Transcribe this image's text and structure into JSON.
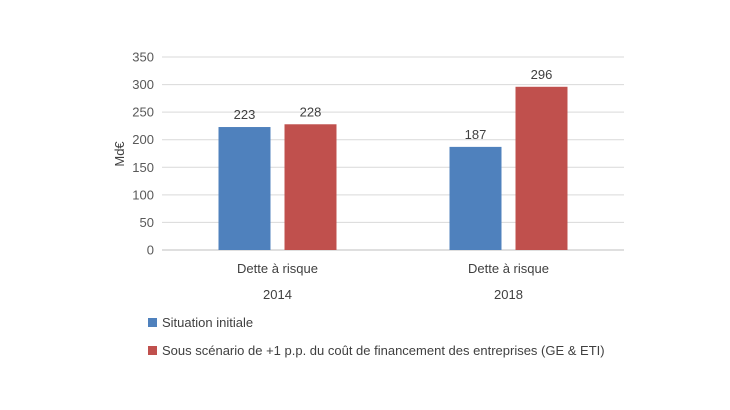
{
  "chart_data": {
    "type": "bar",
    "title": "",
    "xlabel": "",
    "ylabel": "Md€",
    "ylim": [
      0,
      350
    ],
    "yticks": [
      0,
      50,
      100,
      150,
      200,
      250,
      300,
      350
    ],
    "grid": true,
    "legend_position": "bottom-left",
    "categories": [
      {
        "label": "Dette à risque",
        "group": "2014"
      },
      {
        "label": "Dette à risque",
        "group": "2018"
      }
    ],
    "series": [
      {
        "name": "Situation initiale",
        "color": "#4f81bd",
        "values": [
          223,
          187
        ]
      },
      {
        "name": "Sous scénario de +1 p.p. du coût de financement des entreprises (GE & ETI)",
        "color": "#c0504d",
        "values": [
          228,
          296
        ]
      }
    ]
  }
}
